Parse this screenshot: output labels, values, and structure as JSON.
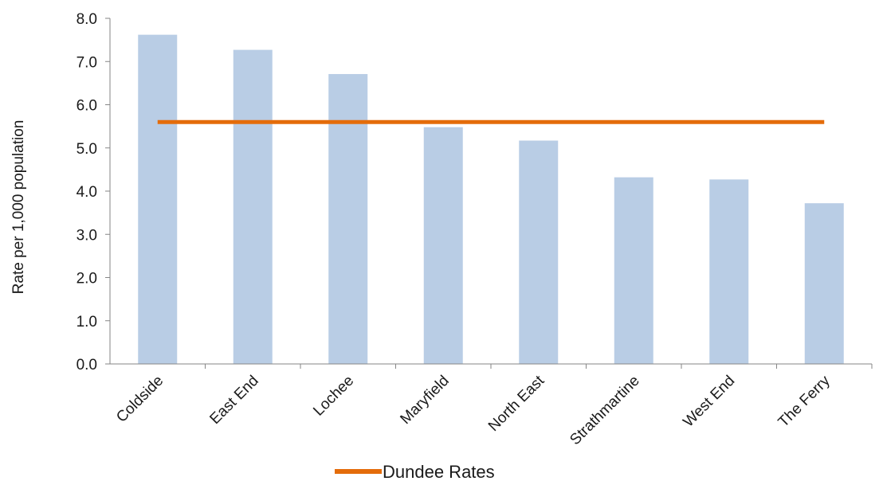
{
  "chart_data": {
    "type": "bar",
    "title": "",
    "xlabel": "",
    "ylabel": "Rate per 1,000 population",
    "ylim": [
      0,
      8
    ],
    "y_ticks": [
      "0.0",
      "1.0",
      "2.0",
      "3.0",
      "4.0",
      "5.0",
      "6.0",
      "7.0",
      "8.0"
    ],
    "categories": [
      "Coldside",
      "East End",
      "Lochee",
      "Maryfield",
      "North East",
      "Strathmartine",
      "West End",
      "The Ferry"
    ],
    "series": [
      {
        "values": [
          7.62,
          7.27,
          6.71,
          5.48,
          5.17,
          4.32,
          4.27,
          3.72
        ],
        "color": "#b9cde5",
        "kind": "bar"
      },
      {
        "name": "Dundee Rates",
        "values": [
          5.6,
          5.6,
          5.6,
          5.6,
          5.6,
          5.6,
          5.6,
          5.6
        ],
        "color": "#e46c0a",
        "kind": "line"
      }
    ],
    "grid": false,
    "legend_position": "bottom",
    "axis_color": "#868686"
  }
}
